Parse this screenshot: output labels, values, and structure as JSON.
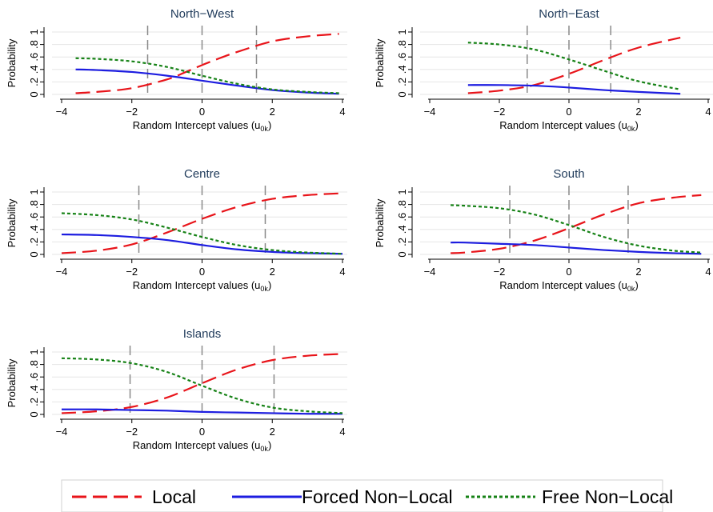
{
  "colors": {
    "local": "#e8141a",
    "forced": "#1d1de0",
    "free": "#168216",
    "ref_lines": "#8a8a8a",
    "grid": "#e6e6e6",
    "title": "#1f3a5a",
    "axis": "#000000"
  },
  "legend": {
    "position": "bottom",
    "items": [
      {
        "label": "Local",
        "color": "#e8141a",
        "dash": "long-dash"
      },
      {
        "label": "Forced Non−Local",
        "color": "#1d1de0",
        "dash": "solid"
      },
      {
        "label": "Free Non−Local",
        "color": "#168216",
        "dash": "short-dash"
      }
    ]
  },
  "chart_data": [
    {
      "type": "line",
      "title": "North−West",
      "xlabel": "Random Intercept values (u",
      "xlabel_sub": "0k",
      "xlabel_close": ")",
      "ylabel": "Probability",
      "xlim": [
        -4,
        4
      ],
      "ylim": [
        0,
        1
      ],
      "xticks": [
        "−4",
        "−2",
        "0",
        "2",
        "4"
      ],
      "yticks": [
        "0",
        ".2",
        ".4",
        ".6",
        ".8",
        "1"
      ],
      "ref_lines_x": [
        -1.55,
        0,
        1.55
      ],
      "grid": true,
      "x_range": [
        -3.6,
        3.9
      ],
      "series": [
        {
          "name": "Local",
          "x": [
            -3.6,
            -3,
            -2,
            -1,
            -0.5,
            0,
            0.5,
            1,
            2,
            3,
            3.9
          ],
          "y": [
            0.02,
            0.04,
            0.1,
            0.24,
            0.35,
            0.47,
            0.58,
            0.68,
            0.85,
            0.93,
            0.97
          ]
        },
        {
          "name": "Forced Non−Local",
          "x": [
            -3.6,
            -3,
            -2,
            -1,
            0,
            1,
            2,
            3,
            3.9
          ],
          "y": [
            0.4,
            0.39,
            0.36,
            0.3,
            0.22,
            0.14,
            0.07,
            0.03,
            0.01
          ]
        },
        {
          "name": "Free Non−Local",
          "x": [
            -3.6,
            -3,
            -2,
            -1,
            0,
            1,
            2,
            3,
            3.9
          ],
          "y": [
            0.58,
            0.57,
            0.53,
            0.44,
            0.3,
            0.17,
            0.08,
            0.04,
            0.02
          ]
        }
      ]
    },
    {
      "type": "line",
      "title": "North−East",
      "xlabel": "Random Intercept values (u",
      "xlabel_sub": "0k",
      "xlabel_close": ")",
      "ylabel": "Probability",
      "xlim": [
        -4,
        4
      ],
      "ylim": [
        0,
        1
      ],
      "xticks": [
        "−4",
        "−2",
        "0",
        "2",
        "4"
      ],
      "yticks": [
        "0",
        ".2",
        ".4",
        ".6",
        ".8",
        "1"
      ],
      "ref_lines_x": [
        -1.2,
        0,
        1.2
      ],
      "grid": true,
      "x_range": [
        -2.9,
        3.2
      ],
      "series": [
        {
          "name": "Local",
          "x": [
            -2.9,
            -2,
            -1,
            0,
            1,
            2,
            3.2
          ],
          "y": [
            0.02,
            0.06,
            0.15,
            0.33,
            0.55,
            0.75,
            0.91
          ]
        },
        {
          "name": "Forced Non−Local",
          "x": [
            -2.9,
            -2,
            -1,
            0,
            1,
            2,
            3.2
          ],
          "y": [
            0.15,
            0.15,
            0.14,
            0.11,
            0.07,
            0.04,
            0.01
          ]
        },
        {
          "name": "Free Non−Local",
          "x": [
            -2.9,
            -2,
            -1,
            0,
            1,
            2,
            3.2
          ],
          "y": [
            0.83,
            0.8,
            0.72,
            0.56,
            0.38,
            0.21,
            0.08
          ]
        }
      ]
    },
    {
      "type": "line",
      "title": "Centre",
      "xlabel": "Random Intercept values (u",
      "xlabel_sub": "0k",
      "xlabel_close": ")",
      "ylabel": "Probability",
      "xlim": [
        -4,
        4
      ],
      "ylim": [
        0,
        1
      ],
      "xticks": [
        "−4",
        "−2",
        "0",
        "2",
        "4"
      ],
      "yticks": [
        "0",
        ".2",
        ".4",
        ".6",
        ".8",
        "1"
      ],
      "ref_lines_x": [
        -1.8,
        0,
        1.8
      ],
      "grid": true,
      "x_range": [
        -4,
        4
      ],
      "series": [
        {
          "name": "Local",
          "x": [
            -4,
            -3,
            -2,
            -1,
            0,
            1,
            2,
            3,
            4
          ],
          "y": [
            0.02,
            0.06,
            0.16,
            0.35,
            0.57,
            0.76,
            0.89,
            0.95,
            0.98
          ]
        },
        {
          "name": "Forced Non−Local",
          "x": [
            -4,
            -3,
            -2,
            -1,
            0,
            1,
            2,
            3,
            4
          ],
          "y": [
            0.32,
            0.31,
            0.28,
            0.23,
            0.15,
            0.08,
            0.04,
            0.02,
            0.01
          ]
        },
        {
          "name": "Free Non−Local",
          "x": [
            -4,
            -3,
            -2,
            -1,
            0,
            1,
            2,
            3,
            4
          ],
          "y": [
            0.66,
            0.63,
            0.56,
            0.43,
            0.28,
            0.15,
            0.07,
            0.03,
            0.01
          ]
        }
      ]
    },
    {
      "type": "line",
      "title": "South",
      "xlabel": "Random Intercept values (u",
      "xlabel_sub": "0k",
      "xlabel_close": ")",
      "ylabel": "Probability",
      "xlim": [
        -4,
        4
      ],
      "ylim": [
        0,
        1
      ],
      "xticks": [
        "−4",
        "−2",
        "0",
        "2",
        "4"
      ],
      "yticks": [
        "0",
        ".2",
        ".4",
        ".6",
        ".8",
        "1"
      ],
      "ref_lines_x": [
        -1.7,
        0,
        1.7
      ],
      "grid": true,
      "x_range": [
        -3.4,
        3.8
      ],
      "series": [
        {
          "name": "Local",
          "x": [
            -3.4,
            -3,
            -2,
            -1,
            0,
            1,
            2,
            3,
            3.8
          ],
          "y": [
            0.02,
            0.03,
            0.09,
            0.22,
            0.42,
            0.64,
            0.82,
            0.91,
            0.95
          ]
        },
        {
          "name": "Forced Non−Local",
          "x": [
            -3.4,
            -3,
            -2,
            -1,
            0,
            1,
            2,
            3,
            3.8
          ],
          "y": [
            0.19,
            0.19,
            0.17,
            0.15,
            0.11,
            0.07,
            0.04,
            0.02,
            0.01
          ]
        },
        {
          "name": "Free Non−Local",
          "x": [
            -3.4,
            -3,
            -2,
            -1,
            0,
            1,
            2,
            3,
            3.8
          ],
          "y": [
            0.79,
            0.78,
            0.74,
            0.64,
            0.47,
            0.28,
            0.14,
            0.06,
            0.03
          ]
        }
      ]
    },
    {
      "type": "line",
      "title": "Islands",
      "xlabel": "Random Intercept values (u",
      "xlabel_sub": "0k",
      "xlabel_close": ")",
      "ylabel": "Probability",
      "xlim": [
        -4,
        4
      ],
      "ylim": [
        0,
        1
      ],
      "xticks": [
        "−4",
        "−2",
        "0",
        "2",
        "4"
      ],
      "yticks": [
        "0",
        ".2",
        ".4",
        ".6",
        ".8",
        "1"
      ],
      "ref_lines_x": [
        -2.05,
        0,
        2.05
      ],
      "grid": true,
      "x_range": [
        -4,
        4
      ],
      "series": [
        {
          "name": "Local",
          "x": [
            -4,
            -3,
            -2,
            -1,
            0,
            1,
            2,
            3,
            4
          ],
          "y": [
            0.02,
            0.05,
            0.12,
            0.27,
            0.5,
            0.72,
            0.87,
            0.94,
            0.97
          ]
        },
        {
          "name": "Forced Non−Local",
          "x": [
            -4,
            -3,
            -2,
            -1,
            0,
            1,
            2,
            3,
            4
          ],
          "y": [
            0.08,
            0.08,
            0.07,
            0.06,
            0.04,
            0.03,
            0.02,
            0.01,
            0.01
          ]
        },
        {
          "name": "Free Non−Local",
          "x": [
            -4,
            -3,
            -2,
            -1,
            0,
            1,
            2,
            3,
            4
          ],
          "y": [
            0.9,
            0.88,
            0.82,
            0.68,
            0.46,
            0.25,
            0.11,
            0.05,
            0.02
          ]
        }
      ]
    }
  ]
}
